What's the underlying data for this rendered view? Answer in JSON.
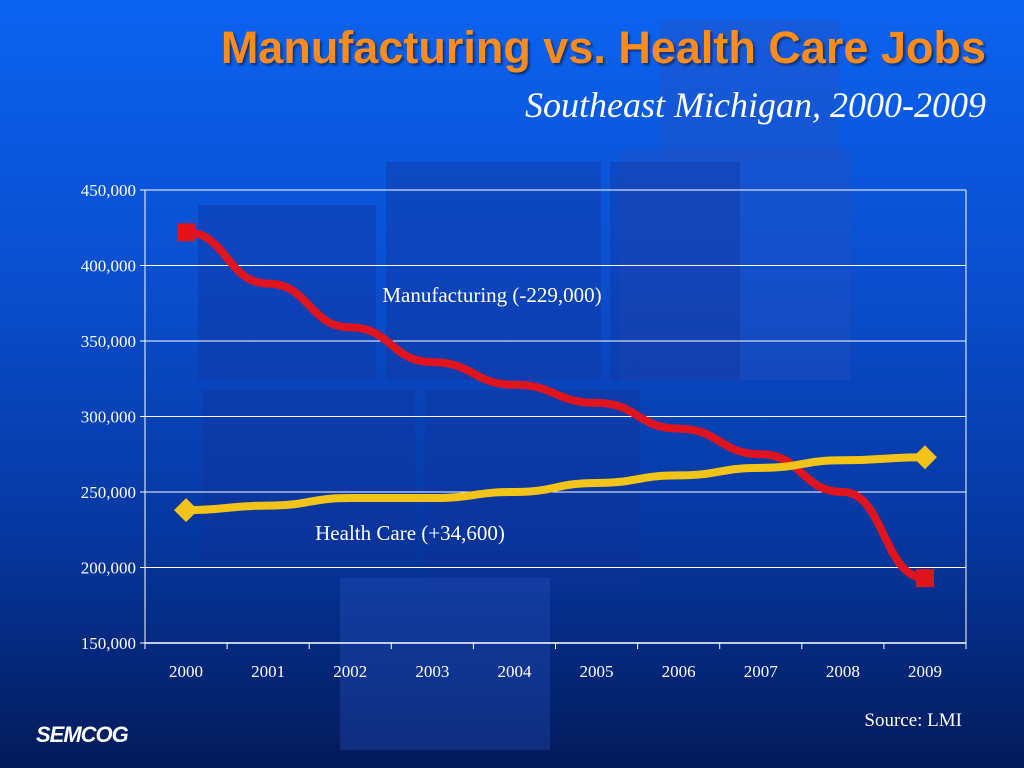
{
  "slide": {
    "title": "Manufacturing vs. Health Care Jobs",
    "subtitle": "Southeast Michigan, 2000-2009",
    "logo": "SEMCOG",
    "source": "Source: LMI"
  },
  "colors": {
    "title": "#ff8c1a",
    "manufacturing": "#e0141e",
    "health_care": "#f2c418",
    "gridline": "#ffffff",
    "text": "#ffffff"
  },
  "chart_data": {
    "type": "line",
    "title": "",
    "xlabel": "",
    "ylabel": "",
    "categories": [
      "2000",
      "2001",
      "2002",
      "2003",
      "2004",
      "2005",
      "2006",
      "2007",
      "2008",
      "2009"
    ],
    "ylim": [
      150000,
      450000
    ],
    "yticks": [
      150000,
      200000,
      250000,
      300000,
      350000,
      400000,
      450000
    ],
    "ytick_labels": [
      "150,000",
      "200,000",
      "250,000",
      "300,000",
      "350,000",
      "400,000",
      "450,000"
    ],
    "grid": true,
    "series": [
      {
        "values": [
          422000,
          388000,
          359000,
          336000,
          321000,
          309000,
          292000,
          275000,
          250000,
          193000
        ],
        "marker": "square",
        "color": "#e0141e"
      },
      {
        "values": [
          238000,
          241000,
          246000,
          246000,
          250000,
          256000,
          261000,
          266000,
          271000,
          273000
        ],
        "marker": "diamond",
        "color": "#f2c418"
      }
    ],
    "annotations": [
      {
        "text": "Manufacturing (-229,000)"
      },
      {
        "text": "Health Care (+34,600)"
      }
    ]
  }
}
